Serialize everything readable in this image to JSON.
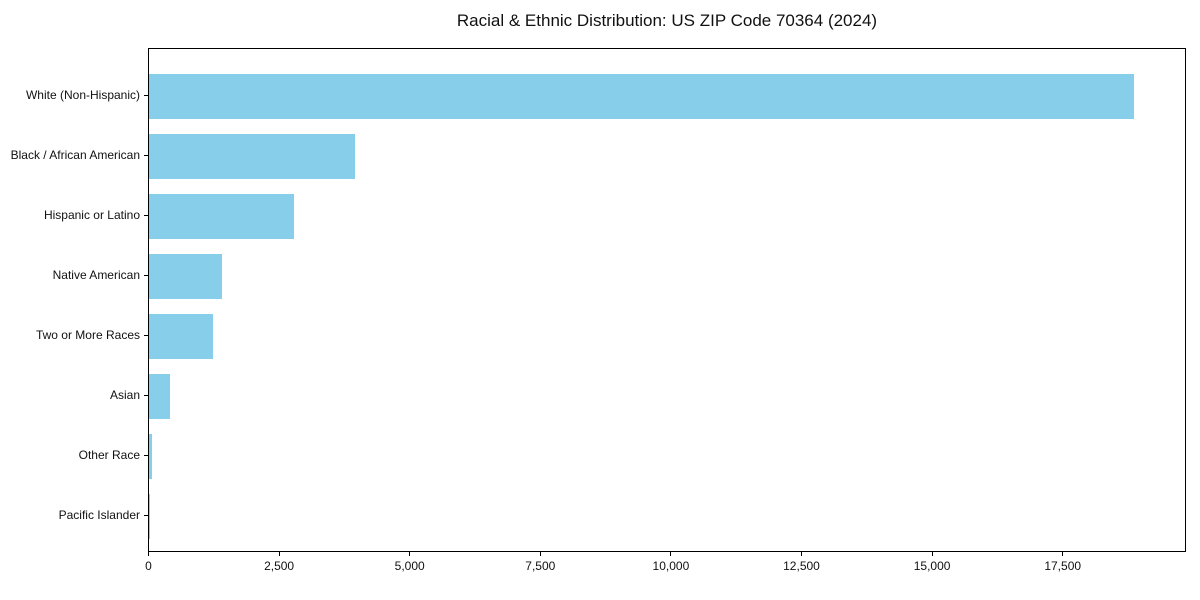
{
  "chart_data": {
    "type": "bar",
    "orientation": "horizontal",
    "title": "Racial & Ethnic Distribution: US ZIP Code 70364 (2024)",
    "categories": [
      "White (Non-Hispanic)",
      "Black / African American",
      "Hispanic or Latino",
      "Native American",
      "Two or More Races",
      "Asian",
      "Other Race",
      "Pacific Islander"
    ],
    "values": [
      18900,
      3950,
      2780,
      1400,
      1225,
      400,
      55,
      10
    ],
    "xlabel": "",
    "ylabel": "",
    "xlim": [
      0,
      19870
    ],
    "x_ticks": [
      {
        "value": 0,
        "label": "0"
      },
      {
        "value": 2500,
        "label": "2,500"
      },
      {
        "value": 5000,
        "label": "5,000"
      },
      {
        "value": 7500,
        "label": "7,500"
      },
      {
        "value": 10000,
        "label": "10,000"
      },
      {
        "value": 12500,
        "label": "12,500"
      },
      {
        "value": 15000,
        "label": "15,000"
      },
      {
        "value": 17500,
        "label": "17,500"
      }
    ],
    "bar_color": "#87CEEB",
    "grid": false,
    "legend": null,
    "background_color": "#ffffff"
  }
}
